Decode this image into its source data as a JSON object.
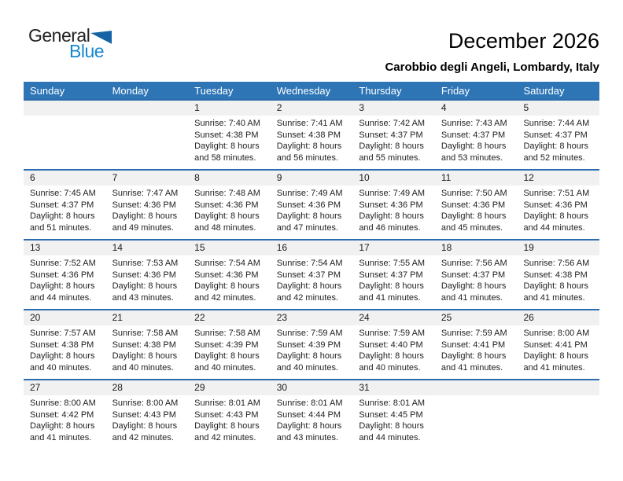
{
  "logo": {
    "general": "General",
    "blue": "Blue",
    "triangle_icon": "blue-sail-triangle"
  },
  "header": {
    "title": "December 2026",
    "subtitle": "Carobbio degli Angeli, Lombardy, Italy"
  },
  "colors": {
    "weekday_header_blue": "#2e75b6",
    "week_row_border_blue": "#2a6cad",
    "day_number_band_gray": "#f1f1f1",
    "logo_text_blue": "#1788ce",
    "logo_triangle_blue": "#1464a5"
  },
  "calendar": {
    "weekdays": [
      "Sunday",
      "Monday",
      "Tuesday",
      "Wednesday",
      "Thursday",
      "Friday",
      "Saturday"
    ],
    "weeks": [
      [
        {},
        {},
        {
          "day": "1",
          "sunrise": "Sunrise: 7:40 AM",
          "sunset": "Sunset: 4:38 PM",
          "daylight": "Daylight: 8 hours and 58 minutes."
        },
        {
          "day": "2",
          "sunrise": "Sunrise: 7:41 AM",
          "sunset": "Sunset: 4:38 PM",
          "daylight": "Daylight: 8 hours and 56 minutes."
        },
        {
          "day": "3",
          "sunrise": "Sunrise: 7:42 AM",
          "sunset": "Sunset: 4:37 PM",
          "daylight": "Daylight: 8 hours and 55 minutes."
        },
        {
          "day": "4",
          "sunrise": "Sunrise: 7:43 AM",
          "sunset": "Sunset: 4:37 PM",
          "daylight": "Daylight: 8 hours and 53 minutes."
        },
        {
          "day": "5",
          "sunrise": "Sunrise: 7:44 AM",
          "sunset": "Sunset: 4:37 PM",
          "daylight": "Daylight: 8 hours and 52 minutes."
        }
      ],
      [
        {
          "day": "6",
          "sunrise": "Sunrise: 7:45 AM",
          "sunset": "Sunset: 4:37 PM",
          "daylight": "Daylight: 8 hours and 51 minutes."
        },
        {
          "day": "7",
          "sunrise": "Sunrise: 7:47 AM",
          "sunset": "Sunset: 4:36 PM",
          "daylight": "Daylight: 8 hours and 49 minutes."
        },
        {
          "day": "8",
          "sunrise": "Sunrise: 7:48 AM",
          "sunset": "Sunset: 4:36 PM",
          "daylight": "Daylight: 8 hours and 48 minutes."
        },
        {
          "day": "9",
          "sunrise": "Sunrise: 7:49 AM",
          "sunset": "Sunset: 4:36 PM",
          "daylight": "Daylight: 8 hours and 47 minutes."
        },
        {
          "day": "10",
          "sunrise": "Sunrise: 7:49 AM",
          "sunset": "Sunset: 4:36 PM",
          "daylight": "Daylight: 8 hours and 46 minutes."
        },
        {
          "day": "11",
          "sunrise": "Sunrise: 7:50 AM",
          "sunset": "Sunset: 4:36 PM",
          "daylight": "Daylight: 8 hours and 45 minutes."
        },
        {
          "day": "12",
          "sunrise": "Sunrise: 7:51 AM",
          "sunset": "Sunset: 4:36 PM",
          "daylight": "Daylight: 8 hours and 44 minutes."
        }
      ],
      [
        {
          "day": "13",
          "sunrise": "Sunrise: 7:52 AM",
          "sunset": "Sunset: 4:36 PM",
          "daylight": "Daylight: 8 hours and 44 minutes."
        },
        {
          "day": "14",
          "sunrise": "Sunrise: 7:53 AM",
          "sunset": "Sunset: 4:36 PM",
          "daylight": "Daylight: 8 hours and 43 minutes."
        },
        {
          "day": "15",
          "sunrise": "Sunrise: 7:54 AM",
          "sunset": "Sunset: 4:36 PM",
          "daylight": "Daylight: 8 hours and 42 minutes."
        },
        {
          "day": "16",
          "sunrise": "Sunrise: 7:54 AM",
          "sunset": "Sunset: 4:37 PM",
          "daylight": "Daylight: 8 hours and 42 minutes."
        },
        {
          "day": "17",
          "sunrise": "Sunrise: 7:55 AM",
          "sunset": "Sunset: 4:37 PM",
          "daylight": "Daylight: 8 hours and 41 minutes."
        },
        {
          "day": "18",
          "sunrise": "Sunrise: 7:56 AM",
          "sunset": "Sunset: 4:37 PM",
          "daylight": "Daylight: 8 hours and 41 minutes."
        },
        {
          "day": "19",
          "sunrise": "Sunrise: 7:56 AM",
          "sunset": "Sunset: 4:38 PM",
          "daylight": "Daylight: 8 hours and 41 minutes."
        }
      ],
      [
        {
          "day": "20",
          "sunrise": "Sunrise: 7:57 AM",
          "sunset": "Sunset: 4:38 PM",
          "daylight": "Daylight: 8 hours and 40 minutes."
        },
        {
          "day": "21",
          "sunrise": "Sunrise: 7:58 AM",
          "sunset": "Sunset: 4:38 PM",
          "daylight": "Daylight: 8 hours and 40 minutes."
        },
        {
          "day": "22",
          "sunrise": "Sunrise: 7:58 AM",
          "sunset": "Sunset: 4:39 PM",
          "daylight": "Daylight: 8 hours and 40 minutes."
        },
        {
          "day": "23",
          "sunrise": "Sunrise: 7:59 AM",
          "sunset": "Sunset: 4:39 PM",
          "daylight": "Daylight: 8 hours and 40 minutes."
        },
        {
          "day": "24",
          "sunrise": "Sunrise: 7:59 AM",
          "sunset": "Sunset: 4:40 PM",
          "daylight": "Daylight: 8 hours and 40 minutes."
        },
        {
          "day": "25",
          "sunrise": "Sunrise: 7:59 AM",
          "sunset": "Sunset: 4:41 PM",
          "daylight": "Daylight: 8 hours and 41 minutes."
        },
        {
          "day": "26",
          "sunrise": "Sunrise: 8:00 AM",
          "sunset": "Sunset: 4:41 PM",
          "daylight": "Daylight: 8 hours and 41 minutes."
        }
      ],
      [
        {
          "day": "27",
          "sunrise": "Sunrise: 8:00 AM",
          "sunset": "Sunset: 4:42 PM",
          "daylight": "Daylight: 8 hours and 41 minutes."
        },
        {
          "day": "28",
          "sunrise": "Sunrise: 8:00 AM",
          "sunset": "Sunset: 4:43 PM",
          "daylight": "Daylight: 8 hours and 42 minutes."
        },
        {
          "day": "29",
          "sunrise": "Sunrise: 8:01 AM",
          "sunset": "Sunset: 4:43 PM",
          "daylight": "Daylight: 8 hours and 42 minutes."
        },
        {
          "day": "30",
          "sunrise": "Sunrise: 8:01 AM",
          "sunset": "Sunset: 4:44 PM",
          "daylight": "Daylight: 8 hours and 43 minutes."
        },
        {
          "day": "31",
          "sunrise": "Sunrise: 8:01 AM",
          "sunset": "Sunset: 4:45 PM",
          "daylight": "Daylight: 8 hours and 44 minutes."
        },
        {},
        {}
      ]
    ]
  }
}
